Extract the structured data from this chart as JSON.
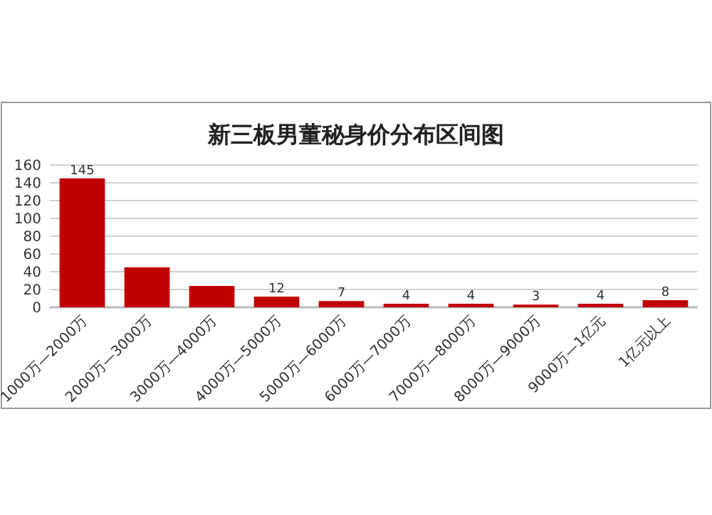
{
  "chart_data": {
    "type": "bar",
    "title": "新三板男董秘身价分布区间图",
    "categories": [
      "1000万—2000万",
      "2000万—3000万",
      "3000万—4000万",
      "4000万—5000万",
      "5000万—6000万",
      "6000万—7000万",
      "7000万—8000万",
      "8000万—9000万",
      "9000万—1亿元",
      "1亿元以上"
    ],
    "values": [
      145,
      45,
      24,
      12,
      7,
      4,
      4,
      3,
      4,
      8
    ],
    "value_labels": [
      "145",
      null,
      null,
      "12",
      "7",
      "4",
      "4",
      "3",
      "4",
      "8"
    ],
    "color": "#c00000",
    "ylim": [
      0,
      160
    ],
    "yticks": [
      0,
      20,
      40,
      60,
      80,
      100,
      120,
      140,
      160
    ],
    "grid": "y"
  }
}
